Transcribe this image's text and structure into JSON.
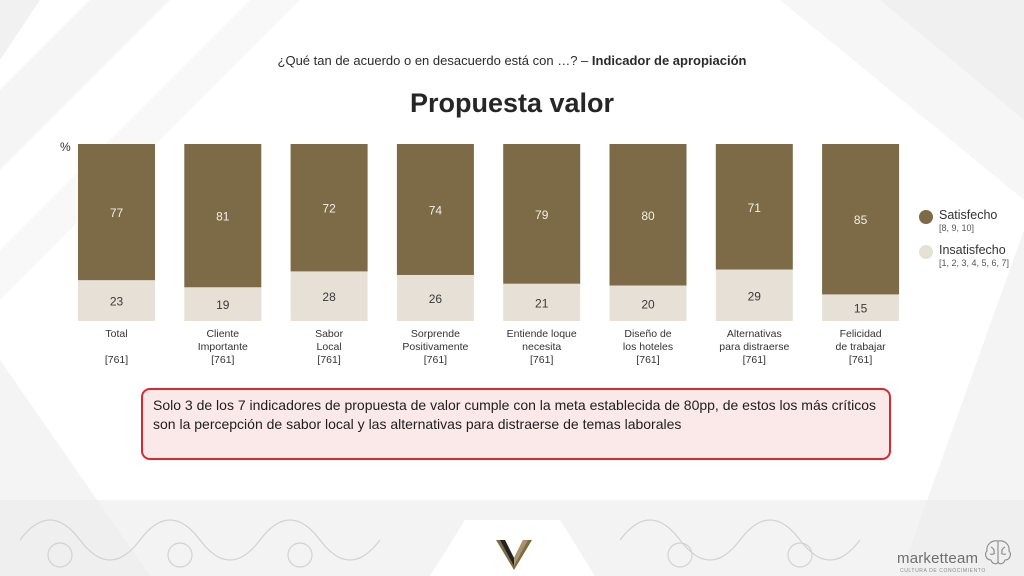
{
  "header": {
    "subtitle_prefix": "¿Qué tan de acuerdo o en desacuerdo está con …? – ",
    "subtitle_bold": "Indicador de apropiación",
    "title": "Propuesta valor"
  },
  "chart_data": {
    "type": "bar",
    "stacked": true,
    "unit_label": "%",
    "categories": [
      {
        "lines": [
          "Total",
          ""
        ],
        "base": "[761]"
      },
      {
        "lines": [
          "Cliente",
          "Importante"
        ],
        "base": "[761]"
      },
      {
        "lines": [
          "Sabor",
          "Local"
        ],
        "base": "[761]"
      },
      {
        "lines": [
          "Sorprende",
          "Positivamente"
        ],
        "base": "[761]"
      },
      {
        "lines": [
          "Entiende loque",
          "necesita"
        ],
        "base": "[761]"
      },
      {
        "lines": [
          "Diseño de",
          "los hoteles"
        ],
        "base": "[761]"
      },
      {
        "lines": [
          "Alternativas",
          "para distraerse"
        ],
        "base": "[761]"
      },
      {
        "lines": [
          "Felicidad",
          "de trabajar"
        ],
        "base": "[761]"
      }
    ],
    "series": [
      {
        "name": "Satisfecho",
        "detail": "[8, 9, 10]",
        "color": "#7c6b46",
        "values": [
          77,
          81,
          72,
          74,
          79,
          80,
          71,
          85
        ]
      },
      {
        "name": "Insatisfecho",
        "detail": "[1, 2, 3, 4, 5, 6, 7]",
        "color": "#e6e0d6",
        "values": [
          23,
          19,
          28,
          26,
          21,
          20,
          29,
          15
        ]
      }
    ],
    "ylim": [
      0,
      100
    ]
  },
  "callout": {
    "text": "Solo 3 de los 7 indicadores de propuesta de valor cumple con la meta establecida de 80pp, de estos los más críticos son la percepción de sabor local y las alternativas para distraerse de temas laborales"
  },
  "footer": {
    "brand": "marketteam",
    "brand_sub": "CULTURA DE CONOCIMIENTO"
  }
}
